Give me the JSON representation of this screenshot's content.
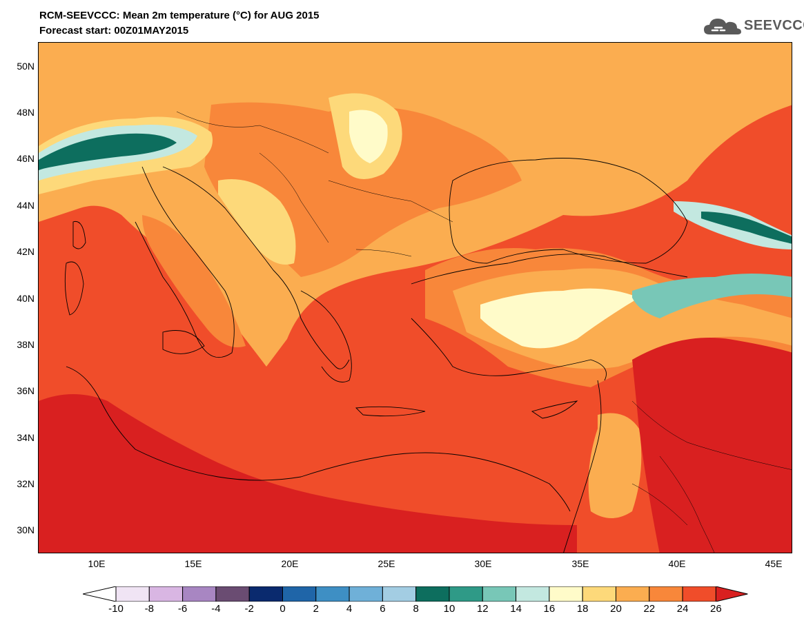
{
  "title_line1": "RCM-SEEVCCC: Mean 2m temperature (°C) for AUG 2015",
  "title_line2": "Forecast start: 00Z01MAY2015",
  "logo_text": "SEEVCCC",
  "lat_labels": [
    "50N",
    "48N",
    "46N",
    "44N",
    "42N",
    "40N",
    "38N",
    "36N",
    "34N",
    "32N",
    "30N"
  ],
  "lon_labels": [
    "10E",
    "15E",
    "20E",
    "25E",
    "30E",
    "35E",
    "40E",
    "45E"
  ],
  "colorbar": {
    "labels": [
      "-10",
      "-8",
      "-6",
      "-4",
      "-2",
      "0",
      "2",
      "4",
      "6",
      "8",
      "10",
      "12",
      "14",
      "16",
      "18",
      "20",
      "22",
      "24",
      "26"
    ],
    "colors": [
      "#ffffff",
      "#f0e4f4",
      "#d9b6e3",
      "#a886c2",
      "#6a4c72",
      "#0a2a6e",
      "#1f65a8",
      "#3e8fc4",
      "#6fb0d8",
      "#a3cde3",
      "#0d6e5e",
      "#2f9a87",
      "#78c7b7",
      "#c3e8e0",
      "#fffbc9",
      "#fdd97a",
      "#fbad50",
      "#f8873a",
      "#f04d2a",
      "#d92020"
    ]
  },
  "colors": {
    "ocean": "#f04d2a",
    "hot": "#d92020",
    "warm": "#f8873a",
    "mild": "#fbad50",
    "pale": "#fdd97a",
    "cream": "#fffbc9",
    "teal_light": "#c3e8e0",
    "teal_mid": "#78c7b7",
    "teal_dark": "#0d6e5e"
  }
}
